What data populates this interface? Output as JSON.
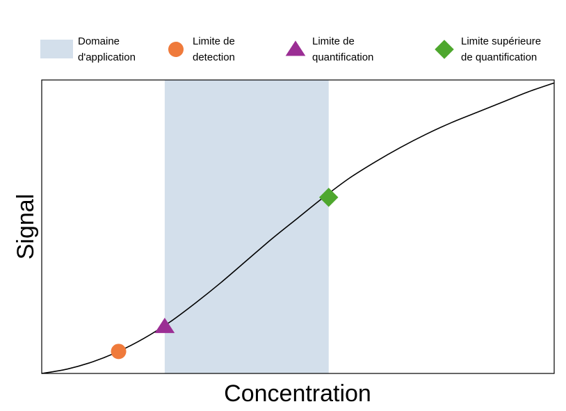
{
  "chart_data": {
    "type": "line",
    "title": "",
    "xlabel": "Concentration",
    "ylabel": "Signal",
    "xlim": [
      0,
      100
    ],
    "ylim": [
      0,
      100
    ],
    "grid": false,
    "legend_position": "top",
    "ticks": "none",
    "curve": {
      "shape": "sigmoid",
      "color": "#000000",
      "x": [
        0,
        5,
        10,
        15,
        20,
        25,
        30,
        35,
        40,
        45,
        50,
        55,
        60,
        65,
        70,
        75,
        80,
        85,
        90,
        95,
        100
      ],
      "y": [
        0,
        1.5,
        4,
        7.5,
        12,
        17.5,
        24,
        31,
        38.5,
        46,
        53,
        60,
        66.5,
        72,
        77,
        81.5,
        85.5,
        89,
        92.5,
        96,
        99
      ]
    },
    "band": {
      "label": "Domaine d'application",
      "x_range": [
        24,
        56
      ],
      "color": "#d3dfeb"
    },
    "markers": [
      {
        "label": "Limite de detection",
        "shape": "circle",
        "color": "#ef7a3b",
        "x": 15,
        "y": 7.5
      },
      {
        "label": "Limite de quantification",
        "shape": "triangle",
        "color": "#9b2e94",
        "x": 24,
        "y": 16
      },
      {
        "label": "Limite supérieure de quantification",
        "shape": "diamond",
        "color": "#4ea72e",
        "x": 56,
        "y": 60
      }
    ],
    "legend": [
      {
        "kind": "band",
        "lines": [
          "Domaine",
          "d'application"
        ],
        "color": "#d3dfeb"
      },
      {
        "kind": "circle",
        "lines": [
          "Limite de",
          "detection"
        ],
        "color": "#ef7a3b"
      },
      {
        "kind": "triangle",
        "lines": [
          "Limite de",
          "quantification"
        ],
        "color": "#9b2e94"
      },
      {
        "kind": "diamond",
        "lines": [
          "Limite supérieure",
          "de quantification"
        ],
        "color": "#4ea72e"
      }
    ]
  }
}
